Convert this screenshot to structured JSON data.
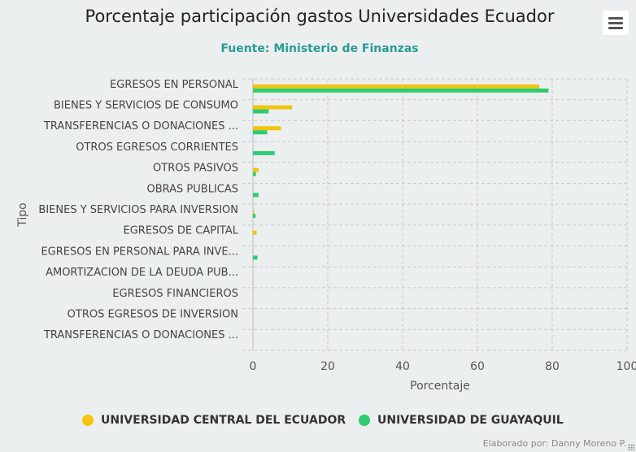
{
  "title": "Porcentaje participación gastos Universidades Ecuador",
  "subtitle": "Fuente: Ministerio de Finanzas",
  "credits": "Elaborado por: Danny Moreno P.",
  "menu_icon": "hamburger-menu-icon",
  "chart_data": {
    "type": "bar",
    "orientation": "horizontal",
    "xlabel": "Porcentaje",
    "ylabel": "Tipo",
    "xlim": [
      0,
      100
    ],
    "xticks": [
      0,
      20,
      40,
      60,
      80,
      100
    ],
    "grid": true,
    "legend_position": "bottom",
    "categories": [
      "EGRESOS EN PERSONAL",
      "BIENES Y SERVICIOS DE CONSUMO",
      "TRANSFERENCIAS O DONACIONES ...",
      "OTROS EGRESOS CORRIENTES",
      "OTROS PASIVOS",
      "OBRAS PUBLICAS",
      "BIENES Y SERVICIOS PARA INVERSION",
      "EGRESOS DE CAPITAL",
      "EGRESOS EN PERSONAL PARA INVE...",
      "AMORTIZACION DE LA DEUDA PUB...",
      "EGRESOS FINANCIEROS",
      "OTROS EGRESOS DE INVERSION",
      "TRANSFERENCIAS O DONACIONES ..."
    ],
    "series": [
      {
        "name": "UNIVERSIDAD CENTRAL DEL ECUADOR",
        "color": "#f1c40f",
        "values": [
          76.5,
          10.5,
          7.5,
          0,
          1.5,
          0,
          0.3,
          1.0,
          0,
          0,
          0,
          0,
          0
        ]
      },
      {
        "name": "UNIVERSIDAD DE GUAYAQUIL",
        "color": "#2ecc71",
        "values": [
          79,
          4.2,
          3.8,
          5.8,
          0.8,
          1.5,
          0.7,
          0,
          1.2,
          0,
          0,
          0,
          0
        ]
      }
    ]
  }
}
